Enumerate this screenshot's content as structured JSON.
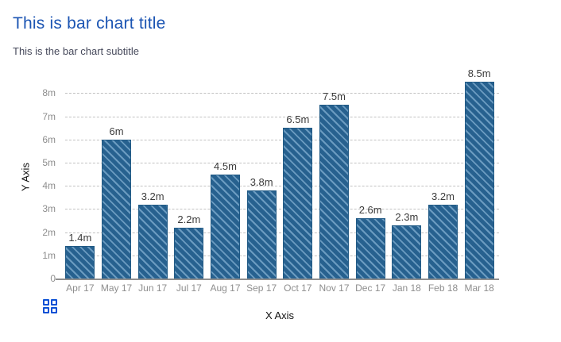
{
  "chart": {
    "title": "This is bar chart title",
    "subtitle": "This is the bar chart subtitle",
    "x_axis_title": "X Axis",
    "y_axis_title": "Y Axis"
  },
  "chart_data": {
    "type": "bar",
    "title": "This is bar chart title",
    "subtitle": "This is the bar chart subtitle",
    "xlabel": "X Axis",
    "ylabel": "Y Axis",
    "categories": [
      "Apr 17",
      "May 17",
      "Jun 17",
      "Jul 17",
      "Aug 17",
      "Sep 17",
      "Oct 17",
      "Nov 17",
      "Dec 17",
      "Jan 18",
      "Feb 18",
      "Mar 18"
    ],
    "values": [
      1.4,
      6,
      3.2,
      2.2,
      4.5,
      3.8,
      6.5,
      7.5,
      2.6,
      2.3,
      3.2,
      8.5
    ],
    "value_labels": [
      "1.4m",
      "6m",
      "3.2m",
      "2.2m",
      "4.5m",
      "3.8m",
      "6.5m",
      "7.5m",
      "2.6m",
      "2.3m",
      "3.2m",
      "8.5m"
    ],
    "unit": "m",
    "ylim": [
      0,
      8.8
    ],
    "ytick_values": [
      0,
      1,
      2,
      3,
      4,
      5,
      6,
      7,
      8
    ],
    "ytick_labels": [
      "0",
      "1m",
      "2m",
      "3m",
      "4m",
      "5m",
      "6m",
      "7m",
      "8m"
    ],
    "grid": "horizontal-dashed",
    "legend": "none",
    "bar_style": {
      "fill": "#27618f",
      "pattern": "diagonal-stripes",
      "stripe_color": "#a3cbe9",
      "border": "#215a85"
    }
  },
  "footer": {
    "menu_icon": "grid-icon",
    "menu_icon_color": "#0a50d5"
  }
}
